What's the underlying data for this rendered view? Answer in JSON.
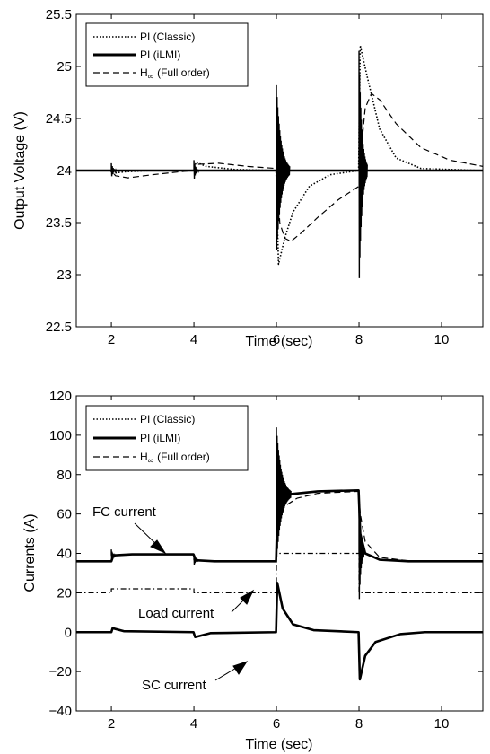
{
  "chart_data": [
    {
      "type": "line",
      "xlabel": "Time (sec)",
      "ylabel": "Output Voltage (V)",
      "xlim": [
        1.15,
        11
      ],
      "ylim": [
        22.5,
        25.5
      ],
      "xticks": [
        "2",
        "4",
        "6",
        "8",
        "10"
      ],
      "xtick_values": [
        2,
        4,
        6,
        8,
        10
      ],
      "yticks": [
        "22.5",
        "23",
        "23.5",
        "24",
        "24.5",
        "25",
        "25.5"
      ],
      "ytick_values": [
        22.5,
        23,
        23.5,
        24,
        24.5,
        25,
        25.5
      ],
      "grid": false,
      "legend": "top-left",
      "legend_entries": [
        "PI (Classic)",
        "PI (iLMI)",
        "H",
        "∞",
        "(Full order)"
      ],
      "series": [
        {
          "name": "PI (Classic)",
          "style": "dotted",
          "points": [
            [
              1.15,
              24
            ],
            [
              1.98,
              24
            ],
            [
              2.03,
              23.97
            ],
            [
              2.15,
              23.98
            ],
            [
              2.4,
              23.99
            ],
            [
              3.0,
              24.0
            ],
            [
              4.0,
              24.0
            ],
            [
              4.05,
              24.08
            ],
            [
              4.3,
              24.04
            ],
            [
              5.0,
              24.01
            ],
            [
              5.99,
              24.0
            ],
            [
              6.05,
              23.1
            ],
            [
              6.2,
              23.35
            ],
            [
              6.4,
              23.6
            ],
            [
              6.8,
              23.85
            ],
            [
              7.3,
              23.96
            ],
            [
              7.99,
              24.0
            ],
            [
              8.03,
              25.2
            ],
            [
              8.2,
              24.9
            ],
            [
              8.5,
              24.4
            ],
            [
              8.9,
              24.12
            ],
            [
              9.5,
              24.02
            ],
            [
              11,
              24.0
            ]
          ]
        },
        {
          "name": "PI (iLMI)",
          "style": "solid-thick",
          "oscillations": [
            {
              "t0": 2.0,
              "dur": 0.13,
              "amp": 0.07,
              "cycles": 6
            },
            {
              "t0": 4.0,
              "dur": 0.12,
              "amp": 0.1,
              "cycles": 6
            },
            {
              "t0": 6.0,
              "dur": 0.32,
              "amp": 0.82,
              "cycles": 20
            },
            {
              "t0": 8.0,
              "dur": 0.2,
              "amp": 1.15,
              "cycles": 14
            }
          ],
          "base": 24
        },
        {
          "name": "H∞ (Full order)",
          "style": "dashed",
          "points": [
            [
              1.15,
              24
            ],
            [
              2.0,
              24
            ],
            [
              2.1,
              23.95
            ],
            [
              2.4,
              23.93
            ],
            [
              3.0,
              23.96
            ],
            [
              3.7,
              23.99
            ],
            [
              4.0,
              24.0
            ],
            [
              4.1,
              24.06
            ],
            [
              4.6,
              24.07
            ],
            [
              5.3,
              24.04
            ],
            [
              6.0,
              24.02
            ],
            [
              6.08,
              23.5
            ],
            [
              6.2,
              23.35
            ],
            [
              6.35,
              23.32
            ],
            [
              6.6,
              23.4
            ],
            [
              7.0,
              23.55
            ],
            [
              7.5,
              23.72
            ],
            [
              8.0,
              23.85
            ],
            [
              8.03,
              24.1
            ],
            [
              8.15,
              24.6
            ],
            [
              8.3,
              24.74
            ],
            [
              8.5,
              24.68
            ],
            [
              8.9,
              24.45
            ],
            [
              9.5,
              24.22
            ],
            [
              10.2,
              24.1
            ],
            [
              11,
              24.04
            ]
          ]
        }
      ]
    },
    {
      "type": "line",
      "xlabel": "Time (sec)",
      "ylabel": "Currents (A)",
      "xlim": [
        1.15,
        11
      ],
      "ylim": [
        -40,
        120
      ],
      "xticks": [
        "2",
        "4",
        "6",
        "8",
        "10"
      ],
      "xtick_values": [
        2,
        4,
        6,
        8,
        10
      ],
      "yticks": [
        "−40",
        "−20",
        "0",
        "20",
        "40",
        "60",
        "80",
        "100",
        "120"
      ],
      "ytick_values": [
        -40,
        -20,
        0,
        20,
        40,
        60,
        80,
        100,
        120
      ],
      "grid": false,
      "legend": "top-left",
      "legend_entries": [
        "PI (Classic)",
        "PI (iLMI)",
        "H",
        "∞",
        "(Full order)"
      ],
      "annotations": [
        "FC current",
        "Load current",
        "SC current"
      ],
      "series": [
        {
          "name": "Load current",
          "style": "dashdot",
          "points": [
            [
              1.15,
              20
            ],
            [
              2.0,
              20
            ],
            [
              2.0,
              22
            ],
            [
              4.0,
              22
            ],
            [
              4.0,
              20
            ],
            [
              6.0,
              20
            ],
            [
              6.0,
              40
            ],
            [
              8.0,
              40
            ],
            [
              8.0,
              20
            ],
            [
              11,
              20
            ]
          ]
        },
        {
          "name": "FC current",
          "style": "solid-thick",
          "points": [
            [
              1.15,
              36
            ],
            [
              2.0,
              36
            ],
            [
              2.05,
              39
            ],
            [
              2.5,
              39.5
            ],
            [
              3.99,
              39.5
            ],
            [
              4.05,
              36.5
            ],
            [
              4.5,
              36
            ],
            [
              5.99,
              36
            ],
            [
              6.03,
              66
            ],
            [
              6.3,
              70
            ],
            [
              7.0,
              71.5
            ],
            [
              7.99,
              72
            ],
            [
              8.03,
              50
            ],
            [
              8.15,
              40
            ],
            [
              8.5,
              36.8
            ],
            [
              9.2,
              36
            ],
            [
              11,
              36
            ]
          ],
          "oscillations": [
            {
              "t0": 2.0,
              "dur": 0.1,
              "amp": 3,
              "cycles": 6,
              "base": 39
            },
            {
              "t0": 4.0,
              "dur": 0.1,
              "amp": 3,
              "cycles": 6,
              "base": 36.5
            },
            {
              "t0": 6.0,
              "dur": 0.35,
              "amp": 34,
              "cycles": 22,
              "base": 70
            },
            {
              "t0": 8.0,
              "dur": 0.12,
              "amp": 28,
              "cycles": 8,
              "base": 40
            }
          ]
        },
        {
          "name": "SC current",
          "style": "solid-thick",
          "points": [
            [
              1.15,
              0
            ],
            [
              2.0,
              0
            ],
            [
              2.03,
              2
            ],
            [
              2.3,
              0.5
            ],
            [
              3.99,
              0
            ],
            [
              4.03,
              -2.5
            ],
            [
              4.4,
              -0.5
            ],
            [
              5.99,
              0
            ],
            [
              6.02,
              25
            ],
            [
              6.15,
              12
            ],
            [
              6.4,
              4
            ],
            [
              6.9,
              1
            ],
            [
              7.99,
              0
            ],
            [
              8.02,
              -24
            ],
            [
              8.15,
              -12
            ],
            [
              8.4,
              -5
            ],
            [
              9.0,
              -1
            ],
            [
              9.6,
              0
            ],
            [
              11,
              0
            ]
          ]
        },
        {
          "name": "H∞ (Full order)",
          "style": "dashed",
          "points": [
            [
              5.99,
              36
            ],
            [
              6.05,
              55
            ],
            [
              6.2,
              64
            ],
            [
              6.5,
              68
            ],
            [
              7.0,
              70.5
            ],
            [
              7.99,
              71.5
            ],
            [
              8.03,
              60
            ],
            [
              8.15,
              46
            ],
            [
              8.5,
              38
            ],
            [
              9.2,
              36.2
            ],
            [
              11,
              36
            ]
          ]
        }
      ]
    }
  ]
}
